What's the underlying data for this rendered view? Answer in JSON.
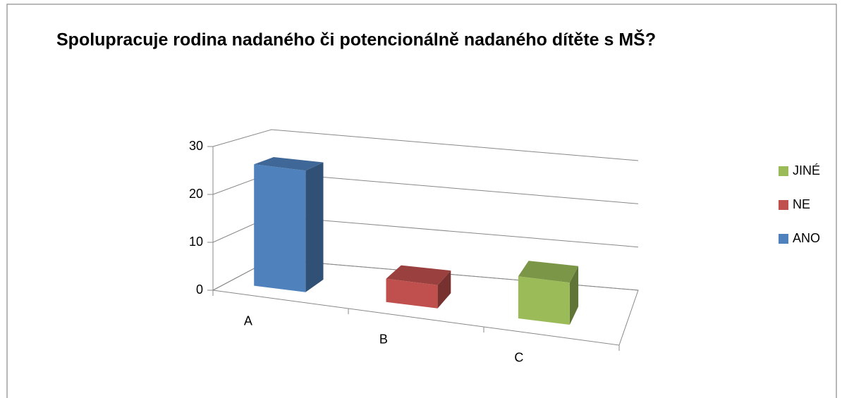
{
  "chart_data": {
    "type": "bar3d",
    "title": "Spolupracuje rodina nadaného či potencionálně nadaného dítěte s MŠ?",
    "categories": [
      "A",
      "B",
      "C"
    ],
    "series": [
      {
        "name": "ANO",
        "color": "#4f81bd",
        "values": [
          26,
          null,
          null
        ]
      },
      {
        "name": "NE",
        "color": "#c0504d",
        "values": [
          null,
          5,
          null
        ]
      },
      {
        "name": "JINÉ",
        "color": "#9bbb59",
        "values": [
          null,
          null,
          9
        ]
      }
    ],
    "ylim": [
      0,
      30
    ],
    "yticks": [
      0,
      10,
      20,
      30
    ],
    "grid": true,
    "legend": "right"
  }
}
